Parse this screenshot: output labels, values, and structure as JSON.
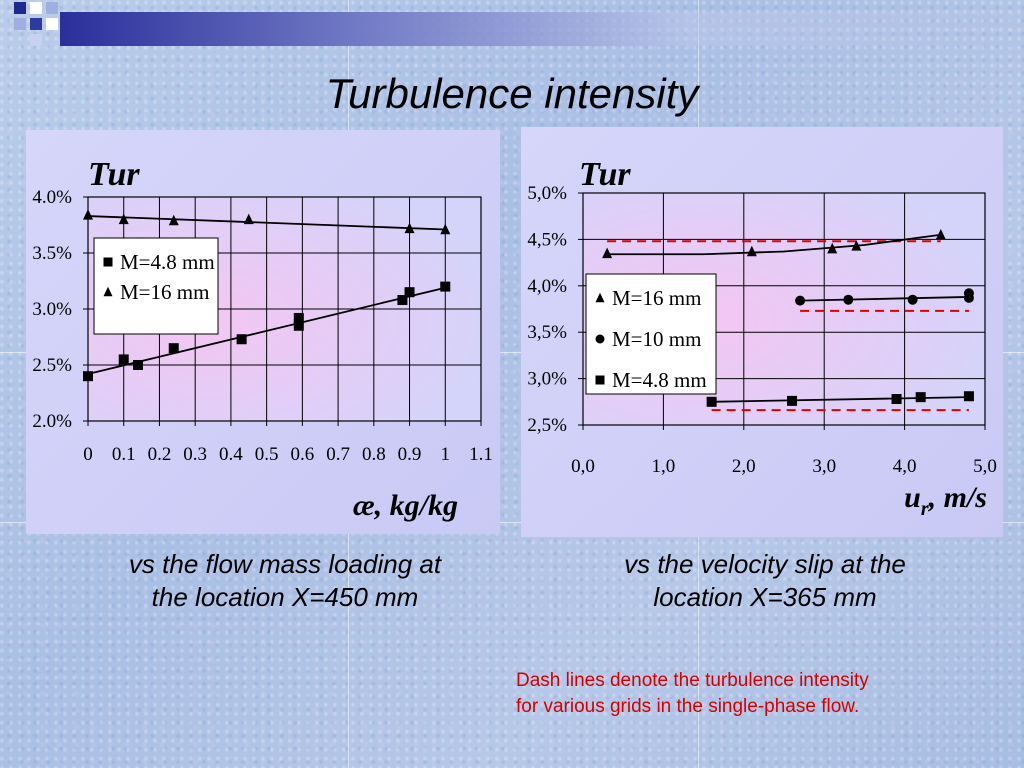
{
  "slide": {
    "title": "Turbulence intensity",
    "caption_left": [
      "vs the flow mass loading at",
      "the location X=450 mm"
    ],
    "caption_right": [
      "vs the velocity slip at the",
      "location X=365 mm"
    ],
    "note": [
      "Dash lines denote the turbulence intensity",
      "for various grids in the single-phase flow."
    ]
  },
  "colors": {
    "plot_bg": "#d4d4fa",
    "dash_line": "#e00000",
    "note_text": "#d40000"
  },
  "chart_data": [
    {
      "type": "scatter",
      "title": "",
      "ylabel": "Tur",
      "xlabel_symbol": "æ",
      "xlabel_unit": ", kg/kg",
      "xlim": [
        0,
        1.1
      ],
      "ylim": [
        0.02,
        0.04
      ],
      "grid": true,
      "x_ticks": [
        "0",
        "0.1",
        "0.2",
        "0.3",
        "0.4",
        "0.5",
        "0.6",
        "0.7",
        "0.8",
        "0.9",
        "1",
        "1.1"
      ],
      "y_ticks": [
        "2.0%",
        "2.5%",
        "3.0%",
        "3.5%",
        "4.0%"
      ],
      "legend_position": "left-middle",
      "series": [
        {
          "name": "M=4.8 mm",
          "marker": "square",
          "x": [
            0,
            0.1,
            0.14,
            0.24,
            0.43,
            0.59,
            0.59,
            0.88,
            0.9,
            1.0
          ],
          "y": [
            0.024,
            0.0255,
            0.025,
            0.0265,
            0.0273,
            0.0292,
            0.0285,
            0.0308,
            0.0315,
            0.032
          ],
          "fit": [
            [
              0,
              0.0242
            ],
            [
              1.0,
              0.0319
            ]
          ]
        },
        {
          "name": "M=16 mm",
          "marker": "triangle",
          "x": [
            0,
            0.1,
            0.24,
            0.45,
            0.9,
            1.0
          ],
          "y": [
            0.0384,
            0.038,
            0.0379,
            0.038,
            0.0372,
            0.0371
          ],
          "fit": [
            [
              0,
              0.0383
            ],
            [
              1.0,
              0.0371
            ]
          ]
        }
      ]
    },
    {
      "type": "scatter",
      "title": "",
      "ylabel": "Tur",
      "xlabel_symbol": "u",
      "xlabel_sub": "r",
      "xlabel_unit": ", m/s",
      "xlim": [
        0,
        5
      ],
      "ylim": [
        0.025,
        0.05
      ],
      "grid": true,
      "x_ticks": [
        "0,0",
        "1,0",
        "2,0",
        "3,0",
        "4,0",
        "5,0"
      ],
      "y_ticks": [
        "2,5%",
        "3,0%",
        "3,5%",
        "4,0%",
        "4,5%",
        "5,0%"
      ],
      "legend_position": "left-middle",
      "series": [
        {
          "name": "M=16 mm",
          "marker": "triangle",
          "x": [
            0.3,
            2.1,
            3.1,
            3.4,
            4.45
          ],
          "y": [
            0.0435,
            0.0437,
            0.044,
            0.0443,
            0.0455
          ],
          "fit": [
            [
              0.3,
              0.0434
            ],
            [
              1.5,
              0.0434
            ],
            [
              2.5,
              0.0437
            ],
            [
              3.5,
              0.0444
            ],
            [
              4.45,
              0.0455
            ]
          ],
          "reference": [
            [
              0.3,
              0.0448
            ],
            [
              4.45,
              0.0448
            ]
          ]
        },
        {
          "name": "M=10 mm",
          "marker": "circle",
          "x": [
            2.7,
            3.3,
            4.1,
            4.8,
            4.8
          ],
          "y": [
            0.0384,
            0.0385,
            0.0385,
            0.0387,
            0.0392
          ],
          "fit": [
            [
              2.7,
              0.0384
            ],
            [
              4.8,
              0.0388
            ]
          ],
          "reference": [
            [
              2.7,
              0.0373
            ],
            [
              4.8,
              0.0373
            ]
          ]
        },
        {
          "name": "M=4.8 mm",
          "marker": "square",
          "x": [
            1.6,
            2.6,
            3.9,
            4.2,
            4.8
          ],
          "y": [
            0.0275,
            0.0276,
            0.0278,
            0.028,
            0.0281
          ],
          "fit": [
            [
              1.6,
              0.0275
            ],
            [
              4.8,
              0.028
            ]
          ],
          "reference": [
            [
              1.6,
              0.0266
            ],
            [
              4.8,
              0.0266
            ]
          ]
        }
      ]
    }
  ]
}
